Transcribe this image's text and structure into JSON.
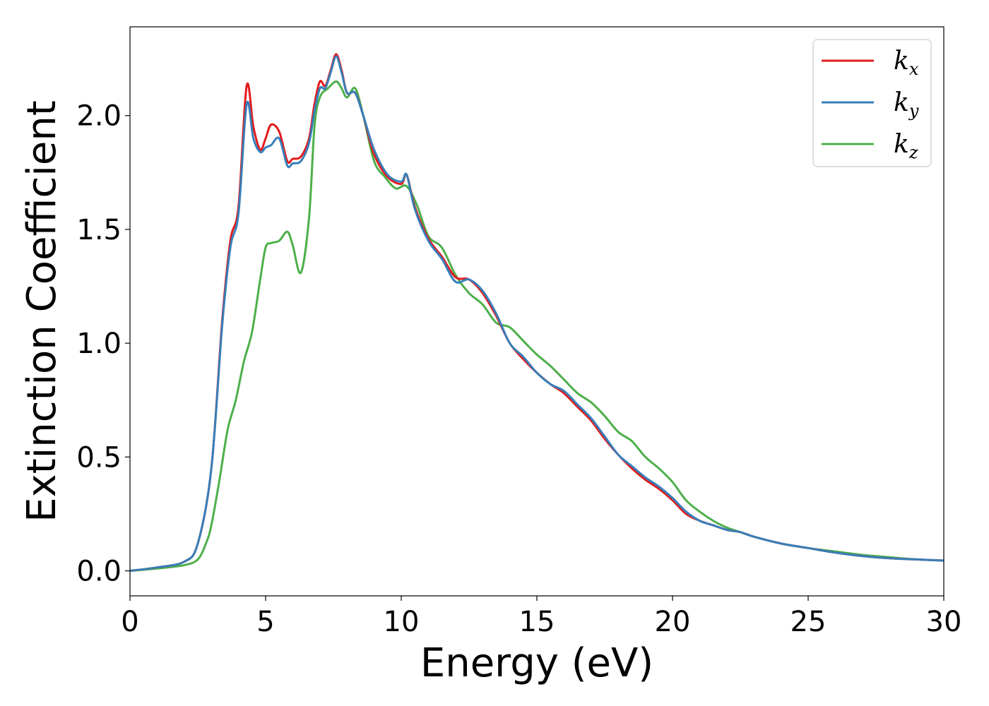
{
  "chart_data": {
    "type": "line",
    "title": "",
    "xlabel": "Energy (eV)",
    "ylabel": "Extinction Coefficient",
    "xlim": [
      0,
      30
    ],
    "ylim": [
      -0.11,
      2.39
    ],
    "xticks": [
      0,
      5,
      10,
      15,
      20,
      25,
      30
    ],
    "xtick_labels": [
      "0",
      "5",
      "10",
      "15",
      "20",
      "25",
      "30"
    ],
    "yticks": [
      0.0,
      0.5,
      1.0,
      1.5,
      2.0
    ],
    "ytick_labels": [
      "0.0",
      "0.5",
      "1.0",
      "1.5",
      "2.0"
    ],
    "grid": false,
    "legend_position": "top-right",
    "series": [
      {
        "name": "k",
        "subscript": "x",
        "color": "#e41a1c",
        "x": [
          0,
          1,
          2,
          2.5,
          3,
          3.4,
          3.7,
          4.0,
          4.3,
          4.55,
          4.8,
          5.0,
          5.2,
          5.5,
          5.8,
          6.0,
          6.3,
          6.6,
          6.8,
          7.0,
          7.2,
          7.4,
          7.6,
          7.8,
          8.0,
          8.3,
          8.6,
          9.0,
          9.5,
          10.0,
          10.2,
          10.5,
          11.0,
          11.5,
          12.0,
          12.5,
          13.0,
          13.5,
          14.0,
          14.5,
          15.0,
          15.5,
          16.0,
          16.5,
          17.0,
          17.5,
          18.0,
          18.5,
          19.0,
          19.5,
          20.0,
          20.5,
          21.0,
          21.5,
          22.0,
          22.5,
          23.0,
          24.0,
          25.0,
          26.0,
          27.0,
          28.0,
          29.0,
          30.0
        ],
        "y": [
          0.0,
          0.015,
          0.04,
          0.12,
          0.45,
          1.1,
          1.45,
          1.6,
          2.13,
          1.95,
          1.85,
          1.9,
          1.96,
          1.93,
          1.8,
          1.81,
          1.82,
          1.9,
          2.05,
          2.15,
          2.13,
          2.2,
          2.27,
          2.2,
          2.1,
          2.1,
          2.0,
          1.83,
          1.73,
          1.7,
          1.74,
          1.6,
          1.46,
          1.38,
          1.29,
          1.28,
          1.22,
          1.12,
          1.0,
          0.93,
          0.87,
          0.82,
          0.78,
          0.72,
          0.66,
          0.58,
          0.51,
          0.45,
          0.4,
          0.36,
          0.31,
          0.25,
          0.22,
          0.2,
          0.18,
          0.17,
          0.15,
          0.12,
          0.1,
          0.08,
          0.065,
          0.055,
          0.05,
          0.045
        ]
      },
      {
        "name": "k",
        "subscript": "y",
        "color": "#377eb8",
        "x": [
          0,
          1,
          2,
          2.5,
          3,
          3.4,
          3.7,
          4.0,
          4.3,
          4.55,
          4.8,
          5.0,
          5.2,
          5.5,
          5.8,
          6.0,
          6.3,
          6.6,
          6.8,
          7.0,
          7.2,
          7.4,
          7.6,
          7.8,
          8.0,
          8.3,
          8.6,
          9.0,
          9.5,
          10.0,
          10.2,
          10.5,
          11.0,
          11.5,
          12.0,
          12.5,
          13.0,
          13.5,
          14.0,
          14.5,
          15.0,
          15.5,
          16.0,
          16.5,
          17.0,
          17.5,
          18.0,
          18.5,
          19.0,
          19.5,
          20.0,
          20.5,
          21.0,
          21.5,
          22.0,
          22.5,
          23.0,
          24.0,
          25.0,
          26.0,
          27.0,
          28.0,
          29.0,
          30.0
        ],
        "y": [
          0.0,
          0.015,
          0.04,
          0.12,
          0.45,
          1.08,
          1.42,
          1.57,
          2.05,
          1.9,
          1.84,
          1.86,
          1.87,
          1.9,
          1.78,
          1.79,
          1.8,
          1.88,
          2.02,
          2.12,
          2.12,
          2.19,
          2.26,
          2.19,
          2.1,
          2.1,
          2.0,
          1.85,
          1.74,
          1.71,
          1.74,
          1.59,
          1.45,
          1.37,
          1.27,
          1.28,
          1.23,
          1.13,
          1.0,
          0.94,
          0.87,
          0.82,
          0.79,
          0.73,
          0.67,
          0.59,
          0.51,
          0.46,
          0.41,
          0.37,
          0.32,
          0.26,
          0.22,
          0.2,
          0.18,
          0.17,
          0.15,
          0.12,
          0.1,
          0.08,
          0.065,
          0.055,
          0.05,
          0.045
        ]
      },
      {
        "name": "k",
        "subscript": "z",
        "color": "#4daf4a",
        "x": [
          0,
          1,
          2,
          2.5,
          2.8,
          3.0,
          3.3,
          3.6,
          3.9,
          4.2,
          4.5,
          4.8,
          5.0,
          5.2,
          5.5,
          5.8,
          6.0,
          6.3,
          6.6,
          6.8,
          7.0,
          7.3,
          7.6,
          7.8,
          8.0,
          8.3,
          8.6,
          9.0,
          9.4,
          9.8,
          10.2,
          10.6,
          11.0,
          11.5,
          12.0,
          12.5,
          13.0,
          13.5,
          14.0,
          14.5,
          15.0,
          15.5,
          16.0,
          16.5,
          17.0,
          17.5,
          18.0,
          18.5,
          19.0,
          19.5,
          20.0,
          20.5,
          21.0,
          21.5,
          22.0,
          22.5,
          23.0,
          24.0,
          25.0,
          26.0,
          27.0,
          28.0,
          29.0,
          30.0
        ],
        "y": [
          0.0,
          0.01,
          0.025,
          0.05,
          0.12,
          0.2,
          0.4,
          0.62,
          0.75,
          0.92,
          1.05,
          1.28,
          1.42,
          1.44,
          1.45,
          1.49,
          1.43,
          1.31,
          1.55,
          1.95,
          2.08,
          2.12,
          2.15,
          2.12,
          2.08,
          2.12,
          2.0,
          1.8,
          1.73,
          1.68,
          1.69,
          1.6,
          1.47,
          1.42,
          1.3,
          1.22,
          1.17,
          1.09,
          1.07,
          1.01,
          0.95,
          0.9,
          0.84,
          0.78,
          0.74,
          0.68,
          0.61,
          0.57,
          0.5,
          0.45,
          0.39,
          0.31,
          0.26,
          0.22,
          0.19,
          0.17,
          0.15,
          0.12,
          0.1,
          0.085,
          0.07,
          0.06,
          0.05,
          0.045
        ]
      }
    ]
  }
}
